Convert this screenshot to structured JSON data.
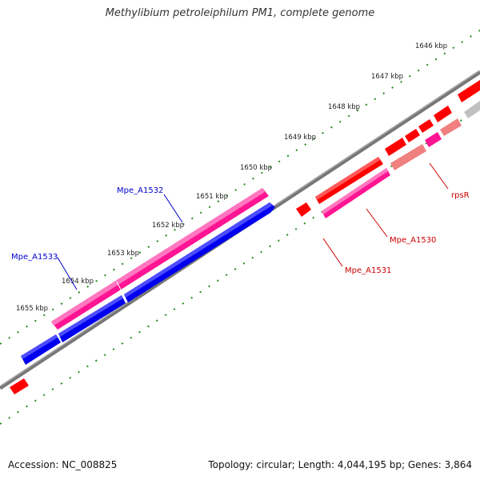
{
  "title": "Methylibium petroleiphilum PM1, complete genome",
  "ticks": [
    "1646 kbp",
    "1647 kbp",
    "1648 kbp",
    "1649 kbp",
    "1650 kbp",
    "1651 kbp",
    "1652 kbp",
    "1653 kbp",
    "1654 kbp",
    "1655 kbp"
  ],
  "features": [
    {
      "name": "Mpe_A1532",
      "color": "#0000cc",
      "strand": "forward"
    },
    {
      "name": "Mpe_A1533",
      "color": "#0000cc",
      "strand": "forward"
    },
    {
      "name": "rpsR",
      "color": "#cc0000",
      "strand": "reverse"
    },
    {
      "name": "Mpe_A1530",
      "color": "#cc0000",
      "strand": "reverse"
    },
    {
      "name": "Mpe_A1531",
      "color": "#cc0000",
      "strand": "reverse"
    }
  ],
  "colors": {
    "forward_gene": "#0000ee",
    "reverse_gene": "#ff0000",
    "rna_gene": "#ff1493",
    "pseudo_gene": "#f08080",
    "backbone": "#777777",
    "tick_dots": "#228b22"
  },
  "footer": {
    "accession": "Accession: NC_008825",
    "summary": "Topology: circular; Length: 4,044,195 bp; Genes: 3,864"
  }
}
